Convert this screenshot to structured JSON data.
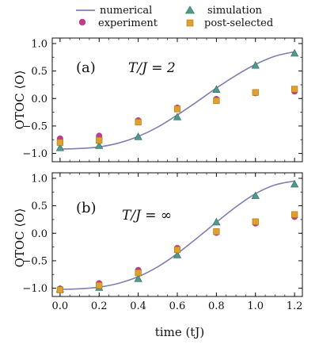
{
  "chart_data": [
    {
      "type": "scatter",
      "panel_label": "(a)",
      "annotation": "T/J = 2",
      "ylabel": "OTOC ⟨O⟩",
      "xlabel": "",
      "xlim": [
        -0.04,
        1.24
      ],
      "ylim": [
        -1.15,
        1.1
      ],
      "xticks": [
        0.0,
        0.2,
        0.4,
        0.6,
        0.8,
        1.0,
        1.2
      ],
      "yticks": [
        -1.0,
        -0.5,
        0.0,
        0.5,
        1.0
      ],
      "ytick_labels": [
        "−1.0",
        "−0.5",
        "0.0",
        "0.5",
        "1.0"
      ],
      "curve": {
        "name": "numerical",
        "color": "#7f7fb3",
        "x": [
          0.0,
          0.1,
          0.2,
          0.3,
          0.4,
          0.5,
          0.6,
          0.7,
          0.8,
          0.9,
          1.0,
          1.1,
          1.2
        ],
        "y": [
          -0.92,
          -0.91,
          -0.88,
          -0.81,
          -0.69,
          -0.52,
          -0.3,
          -0.06,
          0.19,
          0.42,
          0.62,
          0.77,
          0.85
        ]
      },
      "series": [
        {
          "name": "experiment",
          "marker": "circle",
          "color": "#c23b8c",
          "x": [
            0.0,
            0.2,
            0.4,
            0.6,
            0.8,
            1.0,
            1.2
          ],
          "y": [
            -0.73,
            -0.68,
            -0.4,
            -0.17,
            -0.01,
            0.1,
            0.13
          ]
        },
        {
          "name": "simulation",
          "marker": "triangle",
          "color": "#4f9a8a",
          "x": [
            0.0,
            0.2,
            0.4,
            0.6,
            0.8,
            1.0,
            1.2
          ],
          "y": [
            -0.9,
            -0.86,
            -0.7,
            -0.34,
            0.16,
            0.6,
            0.82
          ]
        },
        {
          "name": "post-selected",
          "marker": "square",
          "color": "#e0a030",
          "x": [
            0.0,
            0.2,
            0.4,
            0.6,
            0.8,
            1.0,
            1.2
          ],
          "y": [
            -0.8,
            -0.76,
            -0.43,
            -0.19,
            -0.04,
            0.11,
            0.17
          ]
        }
      ]
    },
    {
      "type": "scatter",
      "panel_label": "(b)",
      "annotation": "T/J = ∞",
      "ylabel": "OTOC ⟨O⟩",
      "xlabel": "time (tJ)",
      "xlim": [
        -0.04,
        1.24
      ],
      "ylim": [
        -1.15,
        1.1
      ],
      "xticks": [
        0.0,
        0.2,
        0.4,
        0.6,
        0.8,
        1.0,
        1.2
      ],
      "xtick_labels": [
        "0.0",
        "0.2",
        "0.4",
        "0.6",
        "0.8",
        "1.0",
        "1.2"
      ],
      "yticks": [
        -1.0,
        -0.5,
        0.0,
        0.5,
        1.0
      ],
      "ytick_labels": [
        "−1.0",
        "−0.5",
        "0.0",
        "0.5",
        "1.0"
      ],
      "curve": {
        "name": "numerical",
        "color": "#7f7fb3",
        "x": [
          0.0,
          0.1,
          0.2,
          0.3,
          0.4,
          0.5,
          0.6,
          0.7,
          0.8,
          0.9,
          1.0,
          1.1,
          1.2
        ],
        "y": [
          -1.02,
          -1.01,
          -0.98,
          -0.91,
          -0.79,
          -0.61,
          -0.37,
          -0.09,
          0.2,
          0.48,
          0.72,
          0.88,
          0.95
        ]
      },
      "series": [
        {
          "name": "experiment",
          "marker": "circle",
          "color": "#c23b8c",
          "x": [
            0.0,
            0.2,
            0.4,
            0.6,
            0.8,
            1.0,
            1.2
          ],
          "y": [
            -1.01,
            -0.91,
            -0.67,
            -0.27,
            0.01,
            0.18,
            0.3
          ]
        },
        {
          "name": "simulation",
          "marker": "triangle",
          "color": "#4f9a8a",
          "x": [
            0.0,
            0.2,
            0.4,
            0.6,
            0.8,
            1.0,
            1.2
          ],
          "y": [
            -1.02,
            -0.99,
            -0.83,
            -0.4,
            0.2,
            0.68,
            0.89
          ]
        },
        {
          "name": "post-selected",
          "marker": "square",
          "color": "#e0a030",
          "x": [
            0.0,
            0.2,
            0.4,
            0.6,
            0.8,
            1.0,
            1.2
          ],
          "y": [
            -1.03,
            -0.95,
            -0.72,
            -0.3,
            0.03,
            0.21,
            0.34
          ]
        }
      ]
    }
  ],
  "legend": {
    "placement": "top",
    "entries": [
      {
        "label": "numerical",
        "marker": "line",
        "color": "#7f7fb3"
      },
      {
        "label": "simulation",
        "marker": "triangle",
        "color": "#4f9a8a"
      },
      {
        "label": "experiment",
        "marker": "circle",
        "color": "#c23b8c"
      },
      {
        "label": "post-selected",
        "marker": "square",
        "color": "#e0a030"
      }
    ]
  }
}
